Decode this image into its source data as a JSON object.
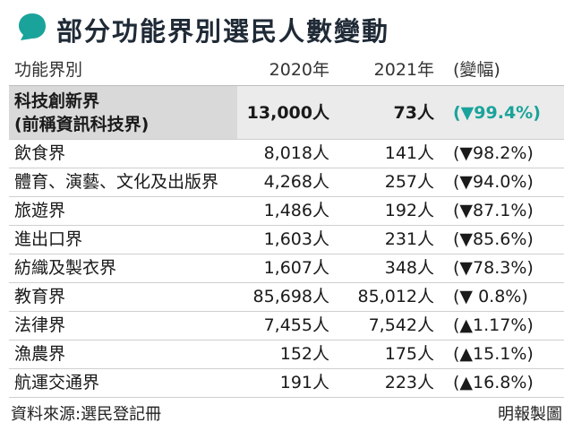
{
  "title": "部分功能界別選民人數變動",
  "colors": {
    "accent": "#1aa39a",
    "highlight_label_bg": "#d9d9d9",
    "highlight_row_bg": "#ebebeb"
  },
  "header": {
    "name": "功能界別",
    "y2020": "2020年",
    "y2021": "2021年",
    "change": "(變幅)"
  },
  "highlight": {
    "name_line1": "科技創新界",
    "name_line2": "(前稱資訊科技界)",
    "y2020": "13,000人",
    "y2021": "73人",
    "change": "(▼99.4%)"
  },
  "rows": [
    {
      "name": "飲食界",
      "y2020": "8,018人",
      "y2021": "141人",
      "change": "(▼98.2%)"
    },
    {
      "name": "體育、演藝、文化及出版界",
      "y2020": "4,268人",
      "y2021": "257人",
      "change": "(▼94.0%)"
    },
    {
      "name": "旅遊界",
      "y2020": "1,486人",
      "y2021": "192人",
      "change": "(▼87.1%)"
    },
    {
      "name": "進出口界",
      "y2020": "1,603人",
      "y2021": "231人",
      "change": "(▼85.6%)"
    },
    {
      "name": "紡織及製衣界",
      "y2020": "1,607人",
      "y2021": "348人",
      "change": "(▼78.3%)"
    },
    {
      "name": "教育界",
      "y2020": "85,698人",
      "y2021": "85,012人",
      "change": "(▼ 0.8%)"
    },
    {
      "name": "法律界",
      "y2020": "7,455人",
      "y2021": "7,542人",
      "change": "(▲1.17%)"
    },
    {
      "name": "漁農界",
      "y2020": "152人",
      "y2021": "175人",
      "change": "(▲15.1%)"
    },
    {
      "name": "航運交通界",
      "y2020": "191人",
      "y2021": "223人",
      "change": "(▲16.8%)"
    }
  ],
  "footer": {
    "source": "資料來源:選民登記冊",
    "credit": "明報製圖"
  }
}
